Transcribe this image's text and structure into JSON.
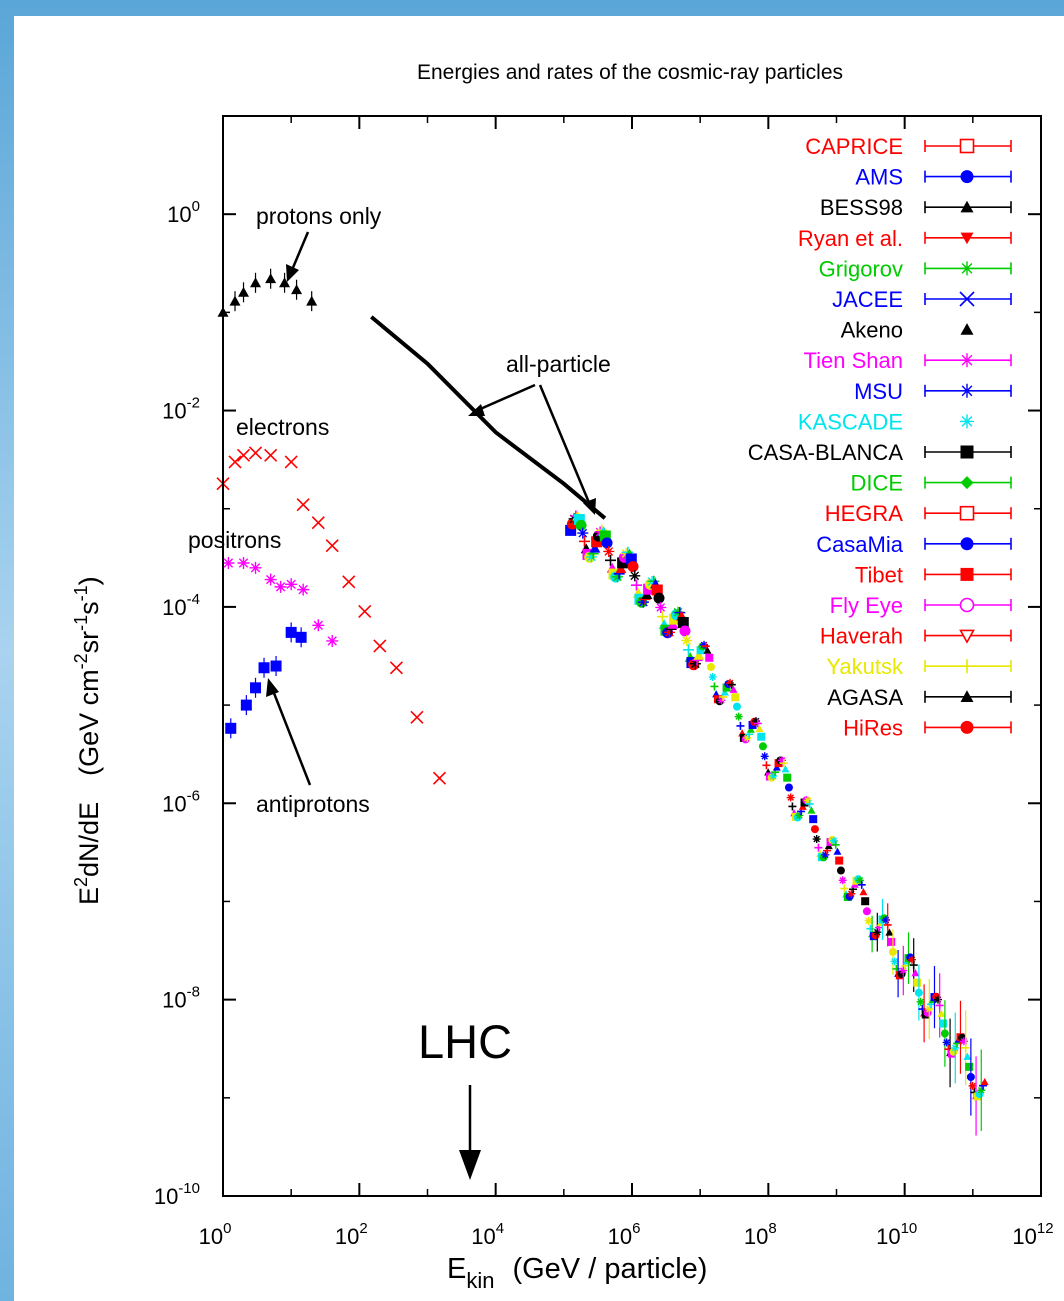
{
  "chart_data": {
    "type": "scatter",
    "title": "Energies and rates of the cosmic-ray particles",
    "xlabel_main": "E",
    "xlabel_sub": "kin",
    "xlabel_units": "(GeV / particle)",
    "ylabel": "E2dN/dE   (GeV cm-2sr-1s-1)",
    "xscale": "log",
    "yscale": "log",
    "xlim": [
      1,
      1000000000000.0
    ],
    "ylim": [
      1e-10,
      10
    ],
    "x_ticks": [
      {
        "base": "10",
        "exp": "0",
        "value": 1
      },
      {
        "base": "10",
        "exp": "2",
        "value": 100
      },
      {
        "base": "10",
        "exp": "4",
        "value": 10000
      },
      {
        "base": "10",
        "exp": "6",
        "value": 1000000
      },
      {
        "base": "10",
        "exp": "8",
        "value": 100000000
      },
      {
        "base": "10",
        "exp": "10",
        "value": 10000000000
      },
      {
        "base": "10",
        "exp": "12",
        "value": 1000000000000
      }
    ],
    "y_ticks": [
      {
        "base": "10",
        "exp": "0",
        "value": 1
      },
      {
        "base": "10",
        "exp": "-2",
        "value": 0.01
      },
      {
        "base": "10",
        "exp": "-4",
        "value": 0.0001
      },
      {
        "base": "10",
        "exp": "-6",
        "value": 1e-06
      },
      {
        "base": "10",
        "exp": "-8",
        "value": 1e-08
      },
      {
        "base": "10",
        "exp": "-10",
        "value": 1e-10
      }
    ],
    "legend_position": "top-right",
    "legend": [
      {
        "name": "CAPRICE",
        "color": "#ff0000",
        "marker": "square-open",
        "errorbar": true
      },
      {
        "name": "AMS",
        "color": "#0000ff",
        "marker": "circle-filled",
        "errorbar": true
      },
      {
        "name": "BESS98",
        "color": "#000000",
        "marker": "triangle-filled",
        "errorbar": true
      },
      {
        "name": "Ryan et al.",
        "color": "#ff0000",
        "marker": "triangle-down-filled",
        "errorbar": true
      },
      {
        "name": "Grigorov",
        "color": "#00cc00",
        "marker": "star",
        "errorbar": true
      },
      {
        "name": "JACEE",
        "color": "#0000ff",
        "marker": "cross",
        "errorbar": true
      },
      {
        "name": "Akeno",
        "color": "#000000",
        "marker": "triangle-filled",
        "errorbar": false
      },
      {
        "name": "Tien Shan",
        "color": "#ff00ff",
        "marker": "star",
        "errorbar": true
      },
      {
        "name": "MSU",
        "color": "#0000ff",
        "marker": "star",
        "errorbar": true
      },
      {
        "name": "KASCADE",
        "color": "#00e5ee",
        "marker": "star",
        "errorbar": false
      },
      {
        "name": "CASA-BLANCA",
        "color": "#000000",
        "marker": "square-filled",
        "errorbar": true
      },
      {
        "name": "DICE",
        "color": "#00cc00",
        "marker": "diamond-filled",
        "errorbar": true
      },
      {
        "name": "HEGRA",
        "color": "#ff0000",
        "marker": "square-open",
        "errorbar": true
      },
      {
        "name": "CasaMia",
        "color": "#0000ff",
        "marker": "circle-filled",
        "errorbar": true
      },
      {
        "name": "Tibet",
        "color": "#ff0000",
        "marker": "square-filled",
        "errorbar": true
      },
      {
        "name": "Fly Eye",
        "color": "#ff00ff",
        "marker": "circle-open",
        "errorbar": true
      },
      {
        "name": "Haverah",
        "color": "#ff0000",
        "marker": "triangle-down-open",
        "errorbar": true
      },
      {
        "name": "Yakutsk",
        "color": "#e8e800",
        "marker": "plus",
        "errorbar": true
      },
      {
        "name": "AGASA",
        "color": "#000000",
        "marker": "triangle-filled",
        "errorbar": true
      },
      {
        "name": "HiRes",
        "color": "#ff0000",
        "marker": "circle-filled",
        "errorbar": true
      }
    ],
    "series": [
      {
        "name": "protons only",
        "color": "#000000",
        "marker": "triangle-filled",
        "points": [
          [
            1.0,
            0.1
          ],
          [
            1.5,
            0.13
          ],
          [
            2,
            0.16
          ],
          [
            3,
            0.2
          ],
          [
            5,
            0.22
          ],
          [
            8,
            0.2
          ],
          [
            12,
            0.17
          ],
          [
            20,
            0.13
          ]
        ]
      },
      {
        "name": "all-particle",
        "color": "#000000",
        "marker": "line",
        "points": [
          [
            150,
            0.09
          ],
          [
            1000,
            0.03
          ],
          [
            10000,
            0.006
          ],
          [
            100000,
            0.0018
          ],
          [
            400000,
            0.0008
          ]
        ]
      },
      {
        "name": "electrons",
        "color": "#ff0000",
        "marker": "cross",
        "points": [
          [
            1,
            0.0018
          ],
          [
            1.5,
            0.003
          ],
          [
            2,
            0.0035
          ],
          [
            3,
            0.0037
          ],
          [
            5,
            0.0035
          ],
          [
            10,
            0.003
          ],
          [
            15,
            0.0011
          ],
          [
            25,
            0.00072
          ],
          [
            40,
            0.00042
          ],
          [
            70,
            0.00018
          ],
          [
            120,
            9e-05
          ],
          [
            200,
            4e-05
          ],
          [
            350,
            2.4e-05
          ],
          [
            700,
            7.5e-06
          ],
          [
            1500,
            1.8e-06
          ]
        ]
      },
      {
        "name": "positrons",
        "color": "#ff00ff",
        "marker": "star",
        "points": [
          [
            1.2,
            0.00028
          ],
          [
            2,
            0.00028
          ],
          [
            3,
            0.00025
          ],
          [
            5,
            0.00019
          ],
          [
            7,
            0.00016
          ],
          [
            10,
            0.00017
          ],
          [
            15,
            0.00015
          ],
          [
            25,
            6.5e-05
          ],
          [
            40,
            4.5e-05
          ]
        ]
      },
      {
        "name": "antiprotons",
        "color": "#0000ff",
        "marker": "square-filled",
        "points": [
          [
            1.3,
            5.8e-06
          ],
          [
            2.2,
            1e-05
          ],
          [
            3,
            1.5e-05
          ],
          [
            4,
            2.4e-05
          ],
          [
            6,
            2.5e-05
          ],
          [
            10,
            5.5e-05
          ],
          [
            14,
            4.9e-05
          ]
        ]
      }
    ],
    "annotations": [
      "protons only",
      "all-particle",
      "electrons",
      "positrons",
      "antiprotons",
      "LHC"
    ]
  }
}
